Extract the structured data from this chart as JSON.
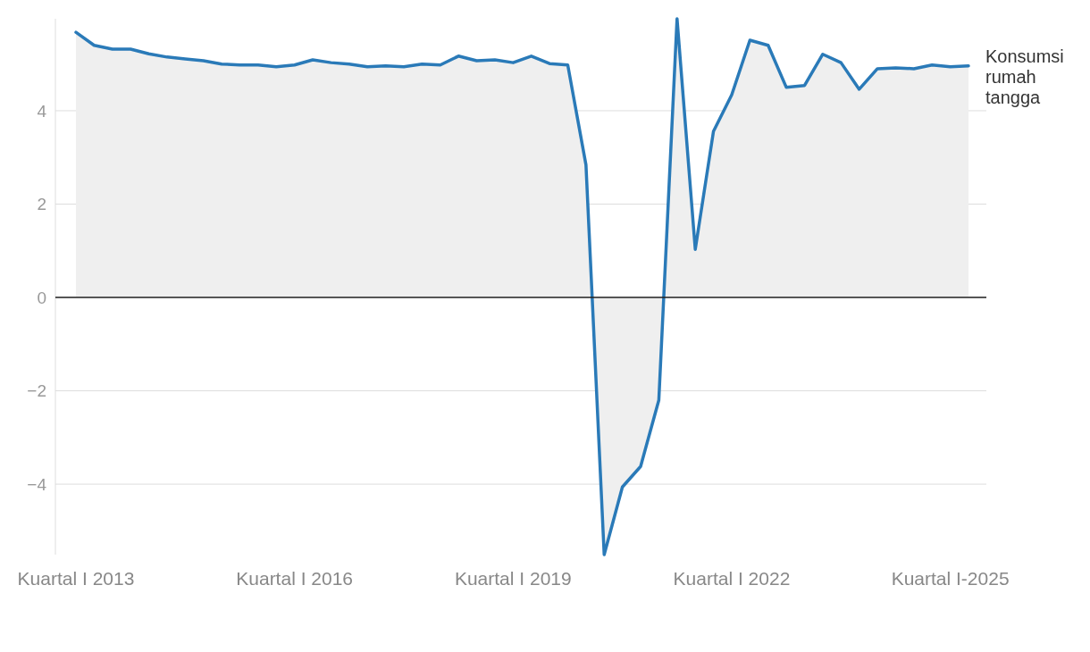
{
  "chart_data": {
    "type": "area",
    "categories": [
      "Kuartal I 2013",
      null,
      null,
      null,
      null,
      null,
      null,
      null,
      null,
      null,
      null,
      null,
      "Kuartal I 2016",
      null,
      null,
      null,
      null,
      null,
      null,
      null,
      null,
      null,
      null,
      null,
      "Kuartal I 2019",
      null,
      null,
      null,
      null,
      null,
      null,
      null,
      null,
      null,
      null,
      null,
      "Kuartal I 2022",
      null,
      null,
      null,
      null,
      null,
      null,
      null,
      null,
      null,
      null,
      null,
      "Kuartal I-2025",
      null
    ],
    "series": [
      {
        "name": "Konsumsi rumah tangga",
        "color": "#2a7ab8",
        "values": [
          5.68,
          5.4,
          5.32,
          5.32,
          5.22,
          5.15,
          5.11,
          5.07,
          5.0,
          4.98,
          4.98,
          4.94,
          4.98,
          5.09,
          5.03,
          5.0,
          4.94,
          4.96,
          4.94,
          5.0,
          4.98,
          5.17,
          5.07,
          5.09,
          5.03,
          5.17,
          5.01,
          4.98,
          2.84,
          -5.51,
          -4.06,
          -3.62,
          -2.2,
          5.97,
          1.03,
          3.56,
          4.34,
          5.51,
          5.4,
          4.5,
          4.54,
          5.21,
          5.03,
          4.46,
          4.9,
          4.92,
          4.9,
          4.98,
          4.94,
          4.96
        ]
      }
    ],
    "yticks": [
      {
        "value": -4,
        "label": "−4"
      },
      {
        "value": -2,
        "label": "−2"
      },
      0,
      2,
      4
    ],
    "ylim": [
      -5.51,
      5.97
    ],
    "grid": "y"
  }
}
